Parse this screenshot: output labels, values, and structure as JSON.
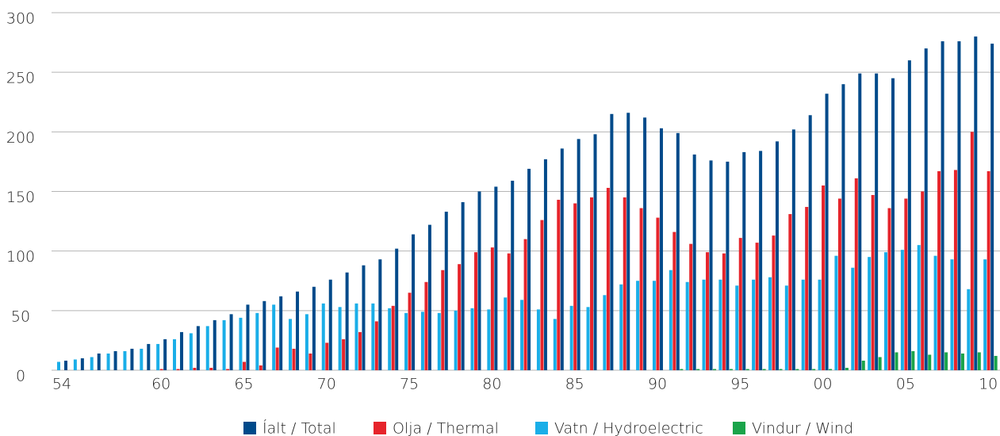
{
  "chart_data": {
    "type": "bar",
    "categories": [
      "54",
      null,
      null,
      null,
      null,
      null,
      "60",
      null,
      null,
      null,
      null,
      "65",
      null,
      null,
      null,
      null,
      "70",
      null,
      null,
      null,
      null,
      "75",
      null,
      null,
      null,
      null,
      "80",
      null,
      null,
      null,
      null,
      "85",
      null,
      null,
      null,
      null,
      "90",
      null,
      null,
      null,
      null,
      "95",
      null,
      null,
      null,
      null,
      "00",
      null,
      null,
      null,
      null,
      "05",
      null,
      null,
      null,
      null,
      "10"
    ],
    "series": [
      {
        "name": "Vatn / Hydroelectric",
        "color": "#1aaee8",
        "values": [
          7,
          9,
          11,
          14,
          16,
          18,
          22,
          26,
          31,
          37,
          42,
          44,
          48,
          55,
          43,
          47,
          56,
          53,
          56,
          56,
          52,
          48,
          49,
          48,
          50,
          52,
          51,
          61,
          59,
          51,
          43,
          54,
          53,
          63,
          72,
          75,
          75,
          84,
          74,
          76,
          76,
          71,
          76,
          78,
          71,
          76,
          76,
          96,
          86,
          95,
          99,
          101,
          105,
          96,
          93,
          68,
          93
        ]
      },
      {
        "name": "Olja / Thermal",
        "color": "#e6242b",
        "values": [
          0,
          0,
          0,
          0,
          0,
          0,
          1,
          1,
          2,
          2,
          1,
          7,
          4,
          19,
          18,
          14,
          23,
          26,
          32,
          41,
          54,
          65,
          74,
          84,
          89,
          99,
          103,
          98,
          110,
          126,
          143,
          140,
          145,
          153,
          145,
          136,
          128,
          116,
          106,
          99,
          98,
          111,
          107,
          113,
          131,
          137,
          155,
          144,
          161,
          147,
          136,
          144,
          150,
          167,
          168,
          200,
          167
        ]
      },
      {
        "name": "Íalt / Total",
        "color": "#004a8a",
        "values": [
          8,
          10,
          14,
          16,
          18,
          22,
          26,
          32,
          37,
          42,
          47,
          55,
          58,
          62,
          66,
          70,
          76,
          82,
          88,
          93,
          102,
          114,
          122,
          133,
          141,
          150,
          154,
          159,
          169,
          177,
          186,
          194,
          198,
          215,
          216,
          212,
          203,
          199,
          181,
          176,
          175,
          183,
          184,
          192,
          202,
          214,
          232,
          240,
          249,
          249,
          245,
          260,
          270,
          276,
          276,
          280,
          274
        ]
      },
      {
        "name": "Vindur / Wind",
        "color": "#1aa44a",
        "values": [
          0,
          0,
          0,
          0,
          0,
          0,
          0,
          0,
          0,
          0,
          0,
          0,
          0,
          0,
          0,
          0,
          0,
          0,
          0,
          0,
          0,
          0,
          0,
          0,
          0,
          0,
          0,
          0,
          0,
          0,
          0,
          0,
          0,
          0,
          0,
          0,
          0,
          1,
          1,
          1,
          1,
          1,
          1,
          1,
          1,
          1,
          1,
          2,
          8,
          11,
          15,
          16,
          13,
          15,
          14,
          15,
          12
        ]
      }
    ],
    "legend_order": [
      2,
      1,
      0,
      3
    ],
    "ylim": [
      0,
      300
    ],
    "yticks": [
      0,
      50,
      100,
      150,
      200,
      250,
      300
    ],
    "grid": true
  }
}
